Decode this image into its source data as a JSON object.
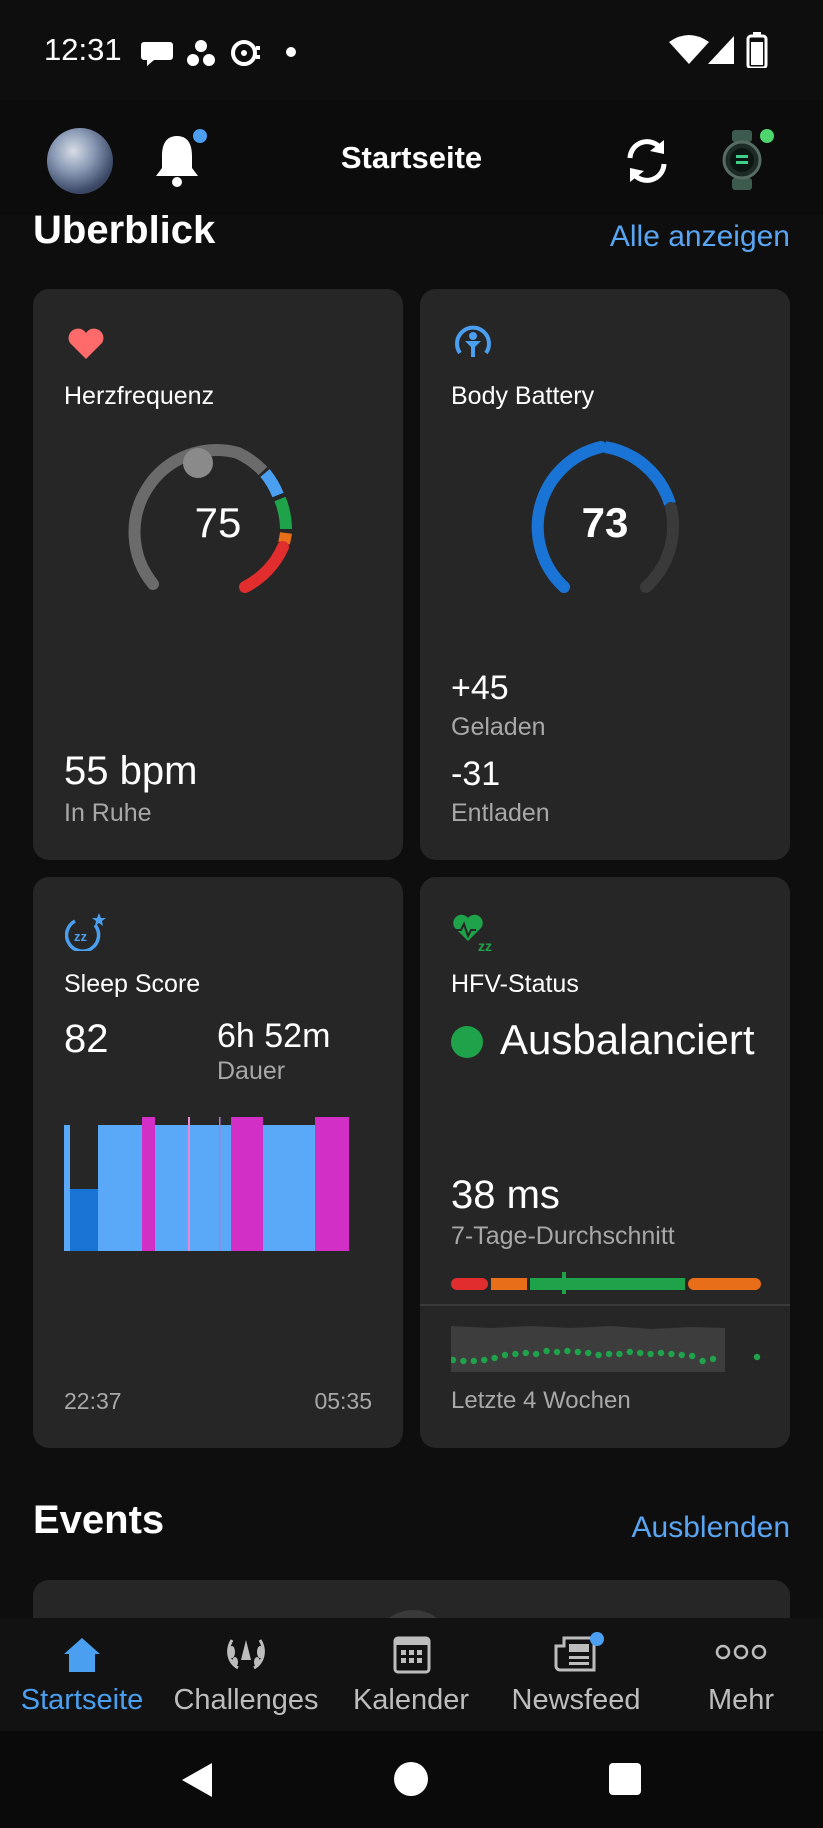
{
  "status_bar": {
    "time": "12:31"
  },
  "header": {
    "title": "Startseite"
  },
  "overview": {
    "heading": "Überblick",
    "link": "Alle anzeigen",
    "heart_rate": {
      "title": "Herzfrequenz",
      "current": "75",
      "value": "55 bpm",
      "caption": "In Ruhe"
    },
    "body_battery": {
      "title": "Body Battery",
      "current": "73",
      "charged_value": "+45",
      "charged_label": "Geladen",
      "drained_value": "-31",
      "drained_label": "Entladen"
    },
    "sleep": {
      "title": "Sleep Score",
      "score": "82",
      "duration": "6h 52m",
      "duration_label": "Dauer",
      "start_time": "22:37",
      "end_time": "05:35"
    },
    "hrv": {
      "title": "HFV-Status",
      "status": "Ausbalanciert",
      "value": "38 ms",
      "caption": "7-Tage-Durchschnitt",
      "trend_label": "Letzte 4 Wochen"
    }
  },
  "events": {
    "heading": "Events",
    "link": "Ausblenden"
  },
  "bottom_nav": [
    {
      "label": "Startseite",
      "icon": "home-icon",
      "active": true
    },
    {
      "label": "Challenges",
      "icon": "laurel-icon",
      "active": false
    },
    {
      "label": "Kalender",
      "icon": "calendar-icon",
      "active": false
    },
    {
      "label": "Newsfeed",
      "icon": "news-icon",
      "active": false
    },
    {
      "label": "Mehr",
      "icon": "more-icon",
      "active": false
    }
  ],
  "colors": {
    "accent": "#5aa5f2",
    "heart": "#ff6b6b",
    "battery": "#1a74d6",
    "sleep_light": "#5aa9f9",
    "sleep_rem": "#d12fc6",
    "sleep_deep": "#1a74d6",
    "hrv_green": "#1fa34a"
  }
}
